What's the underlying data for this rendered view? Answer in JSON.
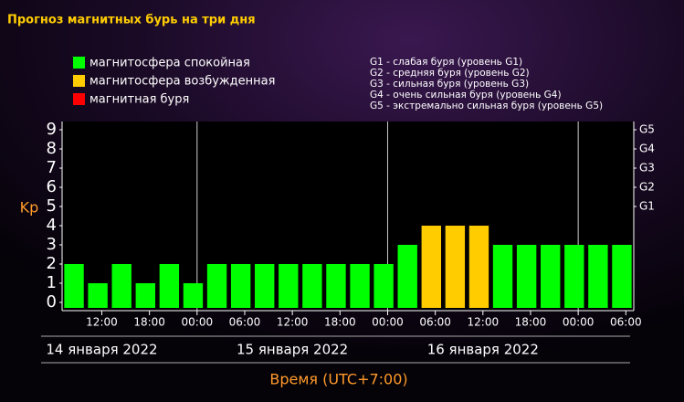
{
  "chart_data": {
    "type": "bar",
    "title": "Прогноз магнитных бурь на три дня",
    "legend": [
      {
        "label": "магнитосфера спокойная",
        "color": "#00ff00"
      },
      {
        "label": "магнитосфера возбужденная",
        "color": "#ffcc00"
      },
      {
        "label": "магнитная буря",
        "color": "#ff0000"
      }
    ],
    "storm_levels": [
      "G1 - слабая буря (уровень G1)",
      "G2 - средняя буря (уровень G2)",
      "G3 - сильная буря (уровень G3)",
      "G4 - очень сильная буря (уровень G4)",
      "G5 - экстремально сильная буря (уровень G5)"
    ],
    "y_label": "Kp",
    "x_label": "Время (UTC+7:00)",
    "x": [
      8.5,
      11.5,
      14.5,
      17.5,
      20.5,
      23.5,
      26.5,
      29.5,
      32.5,
      35.5,
      38.5,
      41.5,
      44.5,
      47.5,
      50.5,
      53.5,
      56.5,
      59.5,
      62.5,
      65.5,
      68.5,
      71.5,
      74.5,
      77.5
    ],
    "values": [
      2,
      1,
      2,
      1,
      2,
      1,
      2,
      2,
      2,
      2,
      2,
      2,
      2,
      2,
      3,
      4,
      4,
      4,
      3,
      3,
      3,
      3,
      3,
      3
    ],
    "colors": [
      "#00ff00",
      "#00ff00",
      "#00ff00",
      "#00ff00",
      "#00ff00",
      "#00ff00",
      "#00ff00",
      "#00ff00",
      "#00ff00",
      "#00ff00",
      "#00ff00",
      "#00ff00",
      "#00ff00",
      "#00ff00",
      "#00ff00",
      "#ffcc00",
      "#ffcc00",
      "#ffcc00",
      "#00ff00",
      "#00ff00",
      "#00ff00",
      "#00ff00",
      "#00ff00",
      "#00ff00"
    ],
    "xlim": [
      7,
      79
    ],
    "xticks": [
      {
        "value": 12,
        "label": "12:00"
      },
      {
        "value": 18,
        "label": "18:00"
      },
      {
        "value": 24,
        "label": "00:00"
      },
      {
        "value": 30,
        "label": "06:00"
      },
      {
        "value": 36,
        "label": "12:00"
      },
      {
        "value": 42,
        "label": "18:00"
      },
      {
        "value": 48,
        "label": "00:00"
      },
      {
        "value": 54,
        "label": "06:00"
      },
      {
        "value": 60,
        "label": "12:00"
      },
      {
        "value": 66,
        "label": "18:00"
      },
      {
        "value": 72,
        "label": "00:00"
      },
      {
        "value": 78,
        "label": "06:00"
      }
    ],
    "xgrid": [
      24,
      48,
      72
    ],
    "dates": [
      {
        "value": 12,
        "label": "14 января 2022"
      },
      {
        "value": 36,
        "label": "15 января 2022"
      },
      {
        "value": 60,
        "label": "16 января 2022"
      }
    ],
    "ylim": [
      -0.43,
      9.43
    ],
    "yticks": [
      0,
      1,
      2,
      3,
      4,
      5,
      6,
      7,
      8,
      9
    ],
    "y2lim": [
      -0.43,
      9.43
    ],
    "y2ticks": [
      {
        "value": 5,
        "label": "G1"
      },
      {
        "value": 6,
        "label": "G2"
      },
      {
        "value": 7,
        "label": "G3"
      },
      {
        "value": 8,
        "label": "G4"
      },
      {
        "value": 9,
        "label": "G5"
      }
    ]
  }
}
